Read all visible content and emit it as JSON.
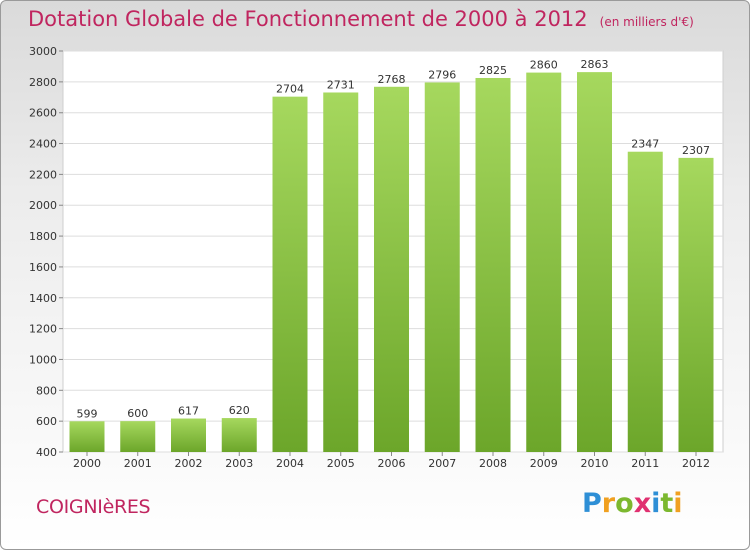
{
  "header": {
    "title": "Dotation Globale de Fonctionnement de 2000 à 2012",
    "unit": "(en milliers d'€)"
  },
  "footer": {
    "commune": "COIGNIèRES",
    "brand_letters": [
      "P",
      "r",
      "o",
      "x",
      "i",
      "t",
      "i"
    ],
    "brand_colors": [
      "#2e8fd6",
      "#f0a020",
      "#7cb82f",
      "#e03070",
      "#2e8fd6",
      "#7cb82f",
      "#f0a020"
    ]
  },
  "colors": {
    "title": "#c0255f",
    "bar_light": "#a6d85e",
    "bar_dark": "#6ca62a",
    "grid": "#dddddd"
  },
  "chart_data": {
    "type": "bar",
    "title": "Dotation Globale de Fonctionnement de 2000 à 2012",
    "subtitle": "(en milliers d'€)",
    "categories": [
      "2000",
      "2001",
      "2002",
      "2003",
      "2004",
      "2005",
      "2006",
      "2007",
      "2008",
      "2009",
      "2010",
      "2011",
      "2012"
    ],
    "values": [
      599,
      600,
      617,
      620,
      2704,
      2731,
      2768,
      2796,
      2825,
      2860,
      2863,
      2347,
      2307
    ],
    "ylim": [
      400,
      3000
    ],
    "yticks": [
      400,
      600,
      800,
      1000,
      1200,
      1400,
      1600,
      1800,
      2000,
      2200,
      2400,
      2600,
      2800,
      3000
    ],
    "grid": true,
    "data_labels": true
  }
}
